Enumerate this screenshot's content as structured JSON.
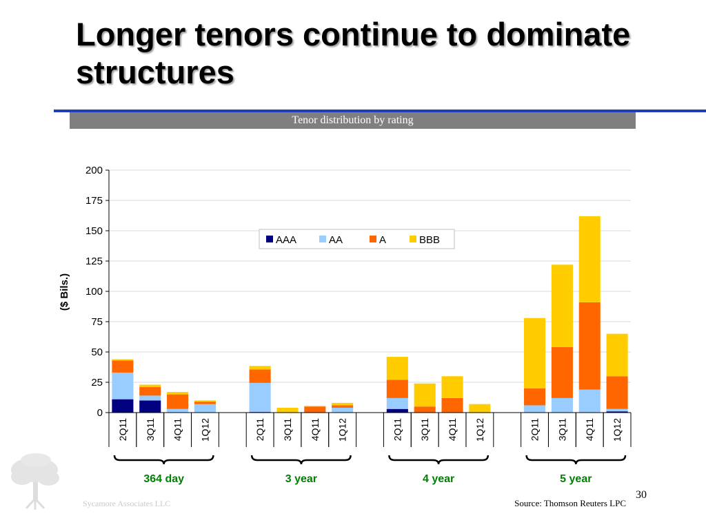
{
  "title": "Longer tenors continue to dominate structures",
  "subtitle": "Tenor distribution by rating",
  "source": "Source: Thomson Reuters LPC",
  "page_number": "30",
  "company": "Sycamore Associates LLC",
  "colors": {
    "AAA": "#000080",
    "AA": "#99ccff",
    "A": "#ff6600",
    "BBB": "#ffcc00",
    "rule": "#1f3fb3",
    "banner": "#7f7f7f",
    "group_label": "#008000"
  },
  "chart_data": {
    "type": "bar",
    "stacked": true,
    "ylabel": "($ Bils.)",
    "ylim": [
      0,
      200
    ],
    "yticks": [
      0,
      25,
      50,
      75,
      100,
      125,
      150,
      175,
      200
    ],
    "grid": true,
    "legend_position": "top-center",
    "groups": [
      {
        "label": "364 day",
        "categories": [
          "2Q11",
          "3Q11",
          "4Q11",
          "1Q12"
        ]
      },
      {
        "label": "3 year",
        "categories": [
          "2Q11",
          "3Q11",
          "4Q11",
          "1Q12"
        ]
      },
      {
        "label": "4 year",
        "categories": [
          "2Q11",
          "3Q11",
          "4Q11",
          "1Q12"
        ]
      },
      {
        "label": "5 year",
        "categories": [
          "2Q11",
          "3Q11",
          "4Q11",
          "1Q12"
        ]
      }
    ],
    "series": [
      {
        "name": "AAA",
        "values": [
          11,
          10,
          0,
          0,
          0.5,
          0,
          0,
          0,
          3,
          0,
          0,
          0,
          0,
          0,
          0,
          1
        ]
      },
      {
        "name": "AA",
        "values": [
          22,
          4,
          3,
          7,
          24,
          0,
          0,
          4,
          9,
          0,
          0,
          0,
          6,
          12,
          19,
          2
        ]
      },
      {
        "name": "A",
        "values": [
          10,
          7,
          12,
          2,
          11,
          0,
          5,
          2,
          15,
          5,
          12,
          0,
          14,
          42,
          72,
          27
        ]
      },
      {
        "name": "BBB",
        "values": [
          1,
          2,
          2,
          1,
          3,
          4,
          0.5,
          2,
          19,
          19,
          18,
          7,
          58,
          68,
          71,
          35
        ]
      }
    ]
  }
}
